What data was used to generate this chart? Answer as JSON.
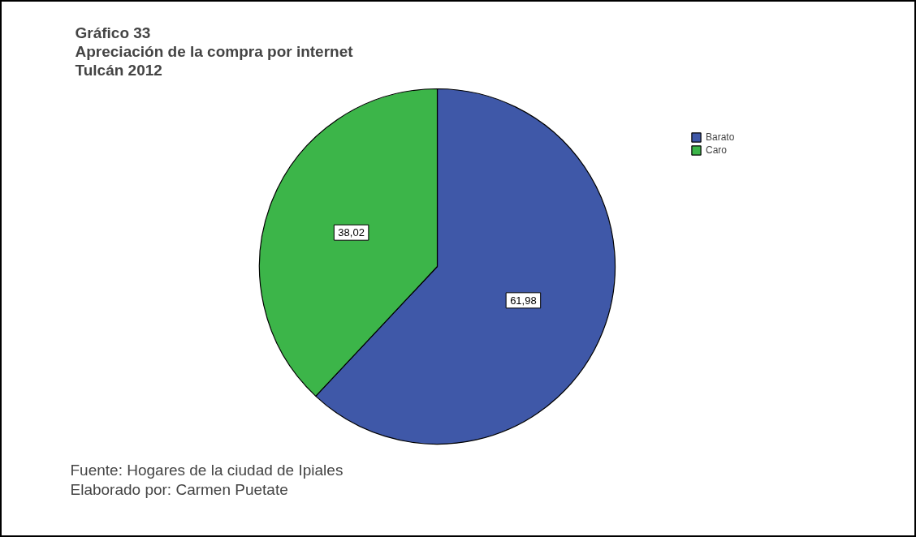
{
  "chart_data": {
    "type": "pie",
    "title": "Gráfico 33\nApreciación de la compra por internet\nTulcán 2012",
    "categories": [
      "Barato",
      "Caro"
    ],
    "values": [
      61.98,
      38.02
    ],
    "colors": [
      "#3f58a8",
      "#3cb549"
    ],
    "value_labels": [
      "61,98",
      "38,02"
    ],
    "legend": "top right",
    "annotations": [
      "Fuente: Hogares de la ciudad de Ipiales",
      "Elaborado por: Carmen Puetate"
    ]
  }
}
